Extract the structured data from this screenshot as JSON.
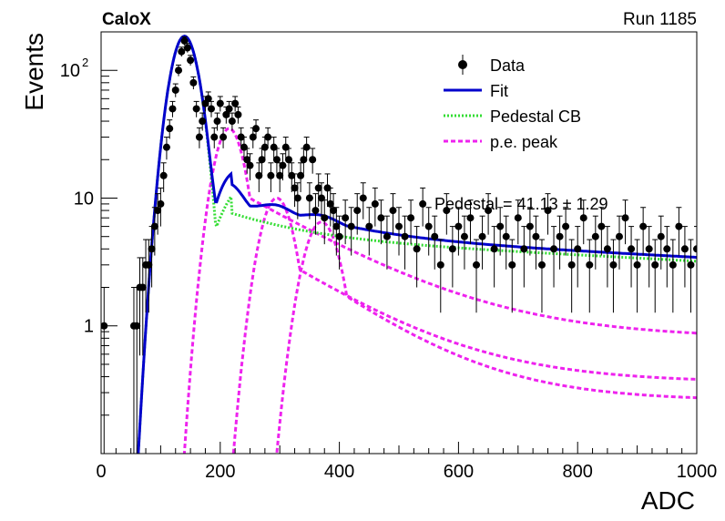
{
  "header": {
    "left": "CaloX",
    "right": "Run 1185"
  },
  "chart_data": {
    "type": "scatter",
    "xlabel": "ADC",
    "ylabel": "Events",
    "xlim": [
      0,
      1000
    ],
    "ylim": [
      0.1,
      200
    ],
    "yscale": "log",
    "x_ticks": [
      0,
      200,
      400,
      600,
      800,
      1000
    ],
    "y_tick_labels": [
      {
        "value": 1,
        "label": "1"
      },
      {
        "value": 10,
        "label": "10"
      },
      {
        "value": 100,
        "label": "10",
        "sup": "2"
      }
    ],
    "annotation": "Pedestal = 41.13 ± 1.29",
    "legend": [
      {
        "label": "Data",
        "style": "marker",
        "color": "#000000"
      },
      {
        "label": "Fit",
        "style": "solid",
        "color": "#0000cc"
      },
      {
        "label": "Pedestal CB",
        "style": "dotted",
        "color": "#33dd33"
      },
      {
        "label": "p.e. peak",
        "style": "dashed",
        "color": "#ee22ee"
      }
    ],
    "legend_position": "top-right",
    "model": {
      "pedestal_peak": {
        "mean": 140,
        "amplitude": 185,
        "sigma": 20,
        "tail_level": 4.6,
        "tail_end": 3.2
      },
      "pe_peaks": [
        {
          "mean": 215,
          "amplitude": 35,
          "sigma": 22
        },
        {
          "mean": 295,
          "amplitude": 10,
          "sigma": 24
        },
        {
          "mean": 370,
          "amplitude": 6.5,
          "sigma": 26
        }
      ],
      "pe_tails_at_1000": [
        0.8,
        0.36,
        0.26
      ]
    },
    "series": [
      {
        "name": "Data",
        "x": [
          5,
          55,
          60,
          65,
          70,
          75,
          80,
          85,
          90,
          95,
          100,
          105,
          110,
          115,
          120,
          125,
          130,
          135,
          140,
          145,
          150,
          155,
          160,
          165,
          170,
          175,
          180,
          185,
          190,
          195,
          200,
          205,
          210,
          215,
          220,
          225,
          230,
          235,
          240,
          245,
          250,
          255,
          260,
          265,
          270,
          275,
          280,
          285,
          290,
          295,
          300,
          305,
          310,
          315,
          320,
          325,
          330,
          335,
          340,
          345,
          350,
          355,
          360,
          365,
          370,
          375,
          380,
          385,
          390,
          395,
          400,
          410,
          420,
          430,
          440,
          450,
          460,
          470,
          480,
          490,
          500,
          510,
          520,
          530,
          540,
          550,
          560,
          570,
          580,
          590,
          600,
          610,
          620,
          630,
          640,
          650,
          660,
          670,
          680,
          690,
          700,
          710,
          720,
          730,
          740,
          750,
          760,
          770,
          780,
          790,
          800,
          810,
          820,
          830,
          840,
          850,
          860,
          870,
          880,
          890,
          900,
          910,
          920,
          930,
          940,
          950,
          960,
          970,
          980,
          990,
          1000
        ],
        "y": [
          1,
          1,
          1,
          2,
          2,
          3,
          3,
          4,
          6,
          8,
          9,
          15,
          25,
          35,
          50,
          70,
          100,
          140,
          170,
          150,
          120,
          80,
          50,
          30,
          40,
          55,
          60,
          50,
          30,
          40,
          55,
          30,
          45,
          50,
          40,
          55,
          45,
          30,
          25,
          20,
          18,
          30,
          35,
          15,
          20,
          25,
          30,
          15,
          25,
          20,
          15,
          18,
          25,
          20,
          15,
          12,
          10,
          15,
          20,
          25,
          10,
          20,
          8,
          12,
          10,
          7,
          12,
          9,
          8,
          6,
          5,
          7,
          6,
          8,
          10,
          6,
          9,
          7,
          5,
          8,
          6,
          5,
          7,
          4,
          9,
          6,
          5,
          3,
          8,
          4,
          6,
          5,
          7,
          3,
          5,
          8,
          4,
          6,
          5,
          3,
          7,
          4,
          6,
          5,
          3,
          8,
          4,
          5,
          6,
          3,
          4,
          7,
          3,
          5,
          6,
          4,
          3,
          5,
          7,
          4,
          3,
          6,
          4,
          3,
          5,
          4,
          3,
          6,
          4,
          3,
          4
        ]
      }
    ]
  }
}
